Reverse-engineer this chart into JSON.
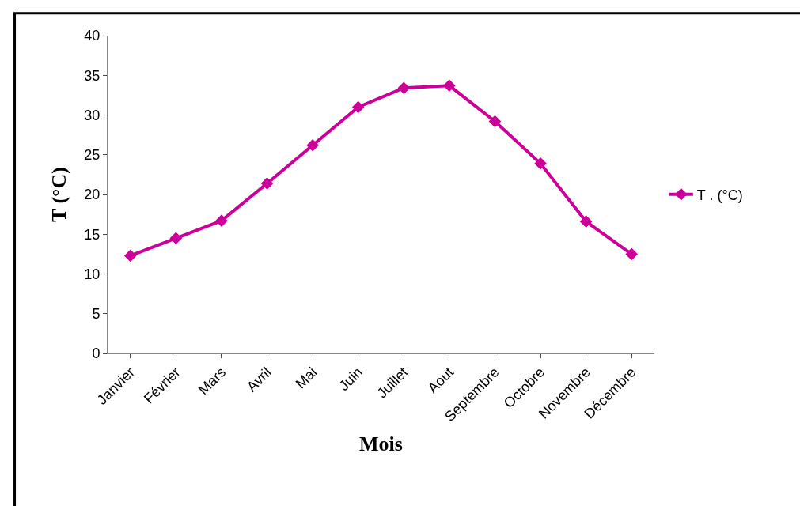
{
  "chart_data": {
    "type": "line",
    "xlabel": "Mois",
    "ylabel": "T (°C)",
    "categories": [
      "Janvier",
      "Février",
      "Mars",
      "Avril",
      "Mai",
      "Juin",
      "Juillet",
      "Aout",
      "Septembre",
      "Octobre",
      "Novembre",
      "Décembre"
    ],
    "series": [
      {
        "name": "T . (°C)",
        "color": "#cc0099",
        "values": [
          12.3,
          14.5,
          16.7,
          21.4,
          26.2,
          31.0,
          33.4,
          33.7,
          29.2,
          23.9,
          16.6,
          12.5
        ]
      }
    ],
    "ylim": [
      0,
      40
    ],
    "yticks": [
      0,
      5,
      10,
      15,
      20,
      25,
      30,
      35,
      40
    ],
    "legend": "right",
    "marker": "diamond",
    "line_style": "solid"
  }
}
